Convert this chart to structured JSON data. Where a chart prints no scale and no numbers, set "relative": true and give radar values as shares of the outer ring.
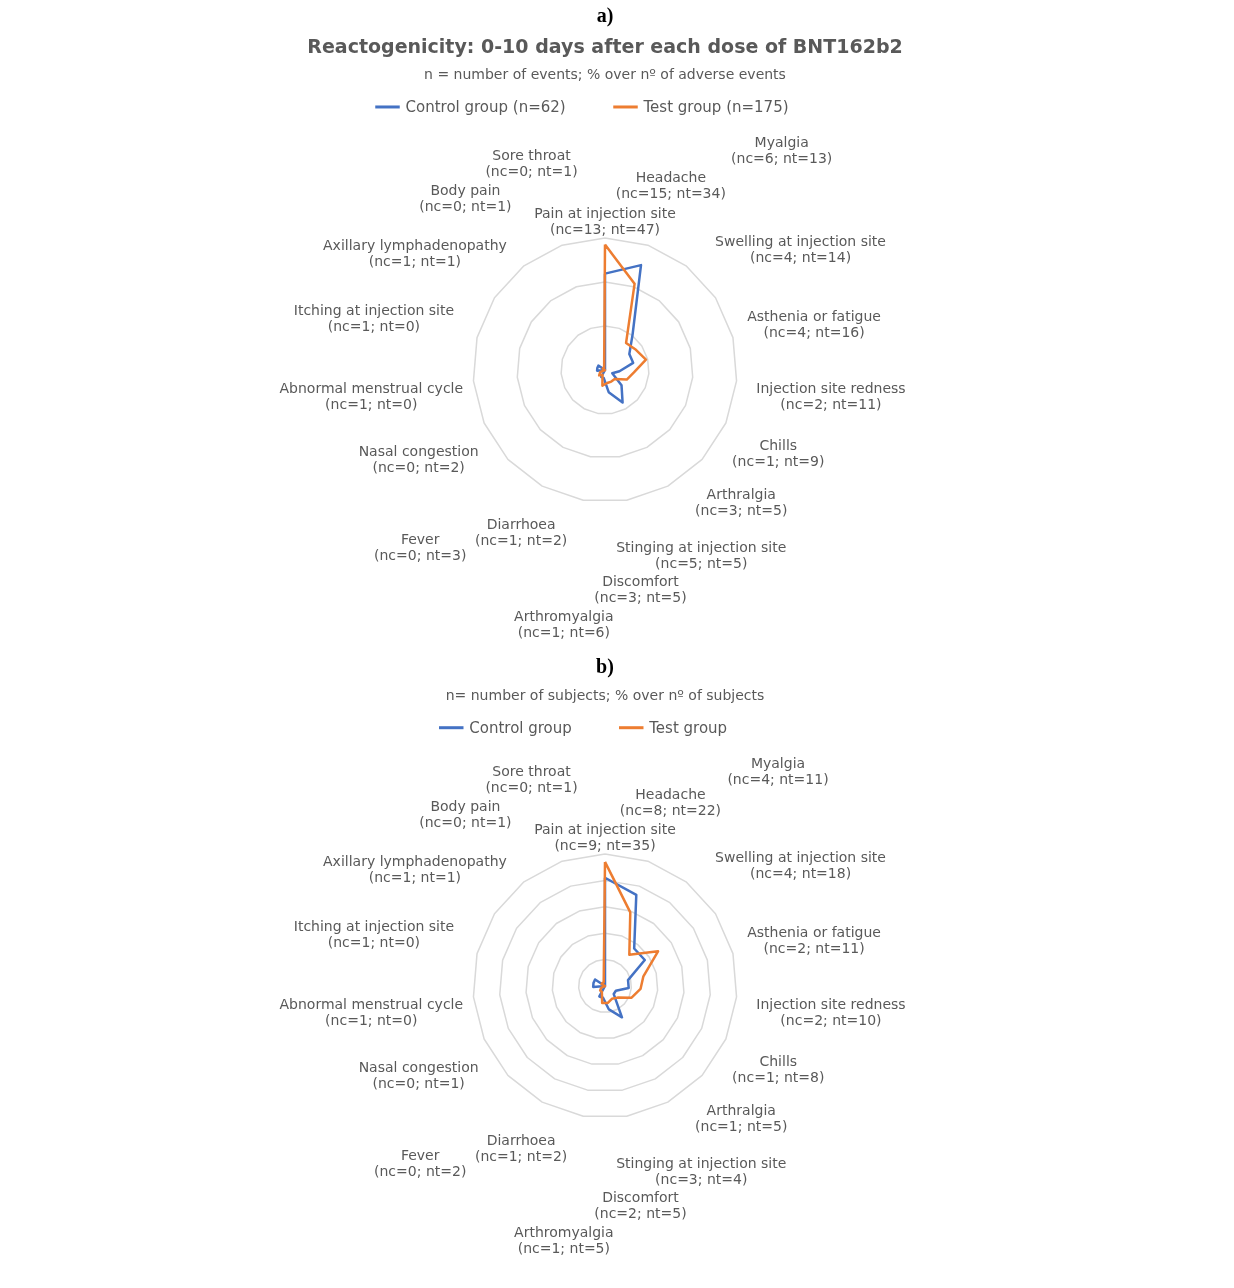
{
  "chart_data": [
    {
      "type": "radar",
      "relative": true,
      "grid": true,
      "legend": "top",
      "annotations": [
        "a)"
      ],
      "title": "Reactogenicity: 0-10 days after each dose of BNT162b2",
      "subtitle": "n = number of events; % over nº of adverse events",
      "categories": [
        "Pain at injection site (nc=13; nt=47)",
        "Headache (nc=15; nt=34)",
        "Myalgia (nc=6; nt=13)",
        "Swelling at injection site (nc=4; nt=14)",
        "Asthenia or fatigue (nc=4; nt=16)",
        "Injection site redness (nc=2; nt=11)",
        "Chills (nc=1; nt=9)",
        "Arthralgia (nc=3; nt=5)",
        "Stinging at injection site (nc=5; nt=5)",
        "Discomfort (nc=3; nt=5)",
        "Arthromyalgia (nc=1; nt=6)",
        "Diarrhoea (nc=1; nt=2)",
        "Fever (nc=0; nt=3)",
        "Nasal congestion (nc=0; nt=2)",
        "Abnormal menstrual cycle (nc=1; nt=0)",
        "Itching at injection site (nc=1; nt=0)",
        "Axillary lymphadenopathy (nc=1; nt=1)",
        "Body pain (nc=0; nt=1)",
        "Sore throat (nc=0; nt=1)"
      ],
      "series": [
        {
          "name": "Control group (n=62)",
          "color": "#4472c4",
          "values": [
            0.73,
            0.84,
            0.34,
            0.22,
            0.22,
            0.11,
            0.06,
            0.17,
            0.28,
            0.17,
            0.06,
            0.06,
            0,
            0,
            0.06,
            0.06,
            0.06,
            0,
            0
          ]
        },
        {
          "name": "Test group (n=175)",
          "color": "#ed7d31",
          "values": [
            0.95,
            0.69,
            0.26,
            0.28,
            0.32,
            0.22,
            0.18,
            0.1,
            0.1,
            0.1,
            0.12,
            0.04,
            0.06,
            0.04,
            0,
            0,
            0.02,
            0.02,
            0.02
          ]
        }
      ]
    },
    {
      "type": "radar",
      "relative": true,
      "grid": true,
      "legend": "top",
      "annotations": [
        "b)"
      ],
      "subtitle": "n= number of subjects; % over nº of subjects",
      "categories": [
        "Pain at injection site (nc=9; nt=35)",
        "Headache (nc=8; nt=22)",
        "Myalgia (nc=4; nt=11)",
        "Swelling at injection site (nc=4; nt=18)",
        "Asthenia or fatigue (nc=2; nt=11)",
        "Injection site redness (nc=2; nt=10)",
        "Chills (nc=1; nt=8)",
        "Arthralgia (nc=1; nt=5)",
        "Stinging at injection site (nc=3; nt=4)",
        "Discomfort (nc=2; nt=5)",
        "Arthromyalgia (nc=1; nt=5)",
        "Diarrhoea (nc=1; nt=2)",
        "Fever (nc=0; nt=2)",
        "Nasal congestion (nc=0; nt=1)",
        "Abnormal menstrual cycle (nc=1; nt=0)",
        "Itching at injection site (nc=1; nt=0)",
        "Axillary lymphadenopathy (nc=1; nt=1)",
        "Body pain (nc=0; nt=1)",
        "Sore throat (nc=0; nt=1)"
      ],
      "series": [
        {
          "name": "Control group",
          "color": "#4472c4",
          "values": [
            0.82,
            0.73,
            0.36,
            0.36,
            0.18,
            0.18,
            0.09,
            0.09,
            0.27,
            0.18,
            0.09,
            0.09,
            0,
            0,
            0.09,
            0.09,
            0.09,
            0,
            0
          ]
        },
        {
          "name": "Test group",
          "color": "#ed7d31",
          "values": [
            0.94,
            0.59,
            0.3,
            0.48,
            0.3,
            0.27,
            0.22,
            0.13,
            0.11,
            0.13,
            0.13,
            0.05,
            0.05,
            0.03,
            0,
            0,
            0.03,
            0.03,
            0.03
          ]
        }
      ]
    }
  ]
}
